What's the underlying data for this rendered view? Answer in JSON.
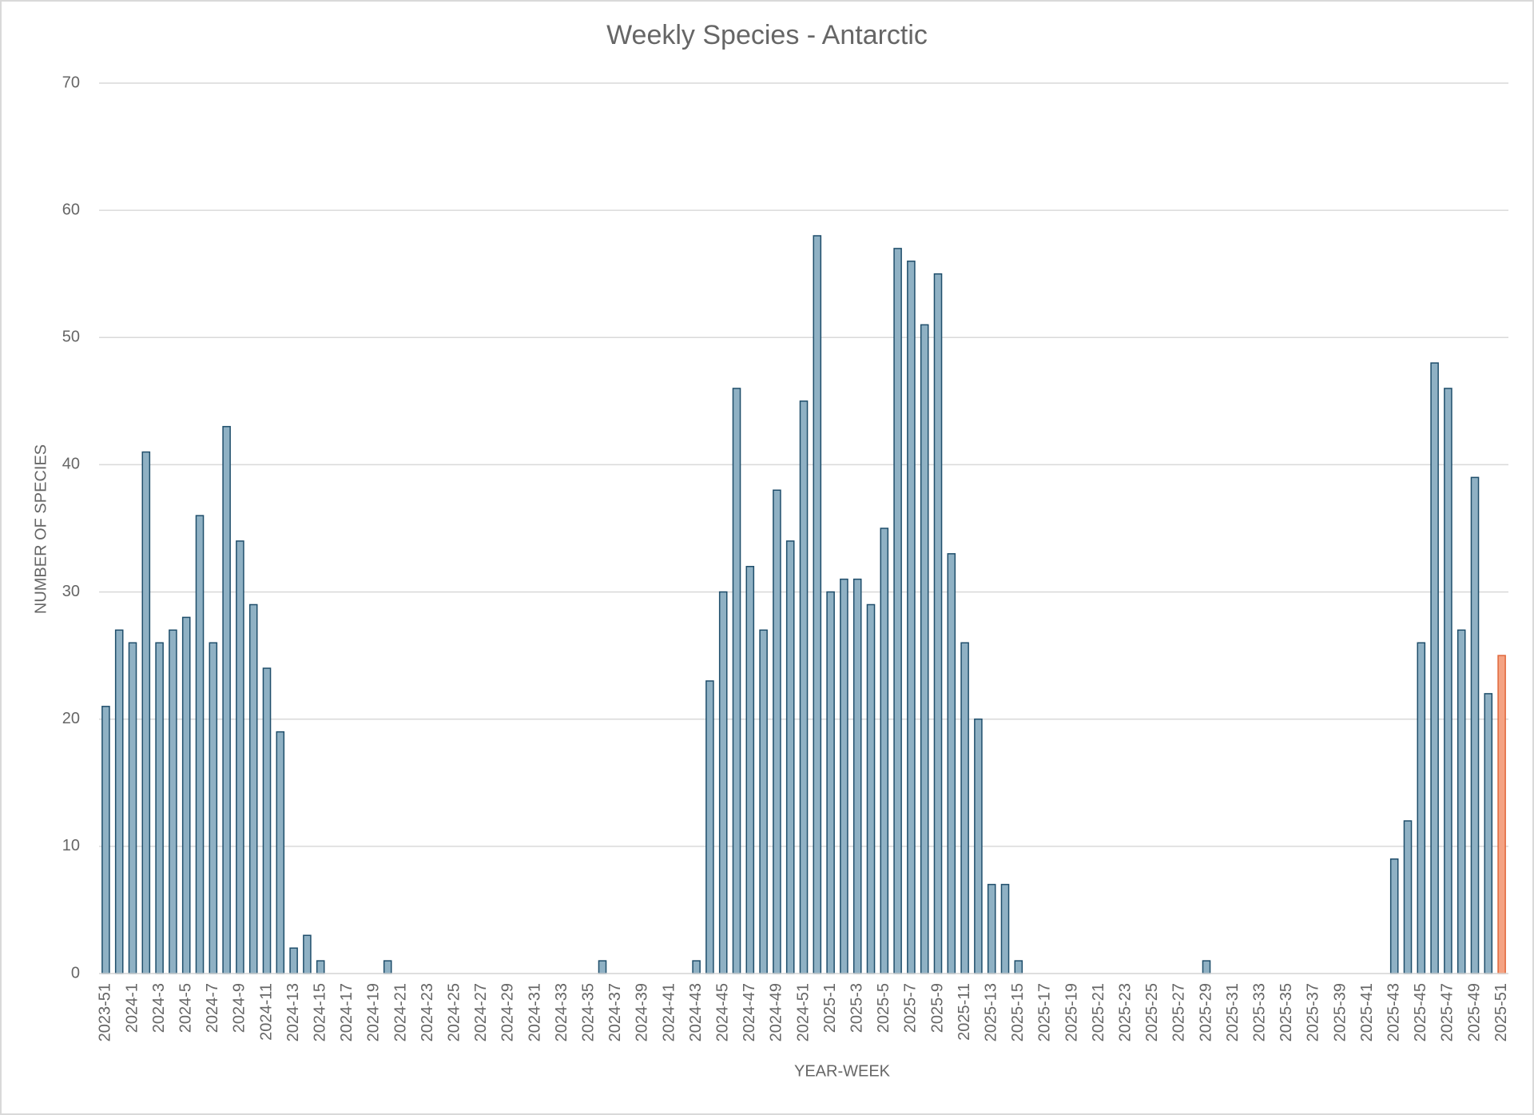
{
  "chart_data": {
    "type": "bar",
    "title": "Weekly Species - Antarctic",
    "x_label": "YEAR-WEEK",
    "y_label": "NUMBER OF SPECIES",
    "categories": [
      "2023-51",
      null,
      "2024-1",
      null,
      "2024-3",
      null,
      "2024-5",
      null,
      "2024-7",
      null,
      "2024-9",
      null,
      "2024-11",
      null,
      "2024-13",
      null,
      "2024-15",
      null,
      "2024-17",
      null,
      "2024-19",
      null,
      "2024-21",
      null,
      "2024-23",
      null,
      "2024-25",
      null,
      "2024-27",
      null,
      "2024-29",
      null,
      "2024-31",
      null,
      "2024-33",
      null,
      "2024-35",
      null,
      "2024-37",
      null,
      "2024-39",
      null,
      "2024-41",
      null,
      "2024-43",
      null,
      "2024-45",
      null,
      "2024-47",
      null,
      "2024-49",
      null,
      "2024-51",
      null,
      "2025-1",
      null,
      "2025-3",
      null,
      "2025-5",
      null,
      "2025-7",
      null,
      "2025-9",
      null,
      "2025-11",
      null,
      "2025-13",
      null,
      "2025-15",
      null,
      "2025-17",
      null,
      "2025-19",
      null,
      "2025-21",
      null,
      "2025-23",
      null,
      "2025-25",
      null,
      "2025-27",
      null,
      "2025-29",
      null,
      "2025-31",
      null,
      "2025-33",
      null,
      "2025-35",
      null,
      "2025-37",
      null,
      "2025-39",
      null,
      "2025-41",
      null,
      "2025-43",
      null,
      "2025-45",
      null,
      "2025-47",
      null,
      "2025-49",
      null,
      "2025-51"
    ],
    "values": [
      21,
      27,
      26,
      41,
      26,
      27,
      28,
      36,
      26,
      43,
      34,
      29,
      24,
      19,
      2,
      3,
      1,
      0,
      0,
      0,
      0,
      1,
      0,
      0,
      0,
      0,
      0,
      0,
      0,
      0,
      0,
      0,
      0,
      0,
      0,
      0,
      0,
      1,
      0,
      0,
      0,
      0,
      0,
      0,
      1,
      23,
      30,
      46,
      32,
      27,
      38,
      34,
      45,
      58,
      30,
      31,
      31,
      29,
      35,
      57,
      56,
      51,
      55,
      33,
      26,
      20,
      7,
      7,
      1,
      0,
      0,
      0,
      0,
      0,
      0,
      0,
      0,
      0,
      0,
      0,
      0,
      0,
      1,
      0,
      0,
      0,
      0,
      0,
      0,
      0,
      0,
      0,
      0,
      0,
      0,
      0,
      9,
      12,
      26,
      48,
      46,
      27,
      39,
      22,
      25
    ],
    "color": "#8fb1c4",
    "edge_color": "#1f4e6b",
    "highlight": {
      "category": "2025-51",
      "color": "#f4a383",
      "edge_color": "#e0663a"
    },
    "ylim": [
      0,
      70
    ],
    "yticks": [
      0,
      10,
      20,
      30,
      40,
      50,
      60,
      70
    ],
    "grid": true
  }
}
